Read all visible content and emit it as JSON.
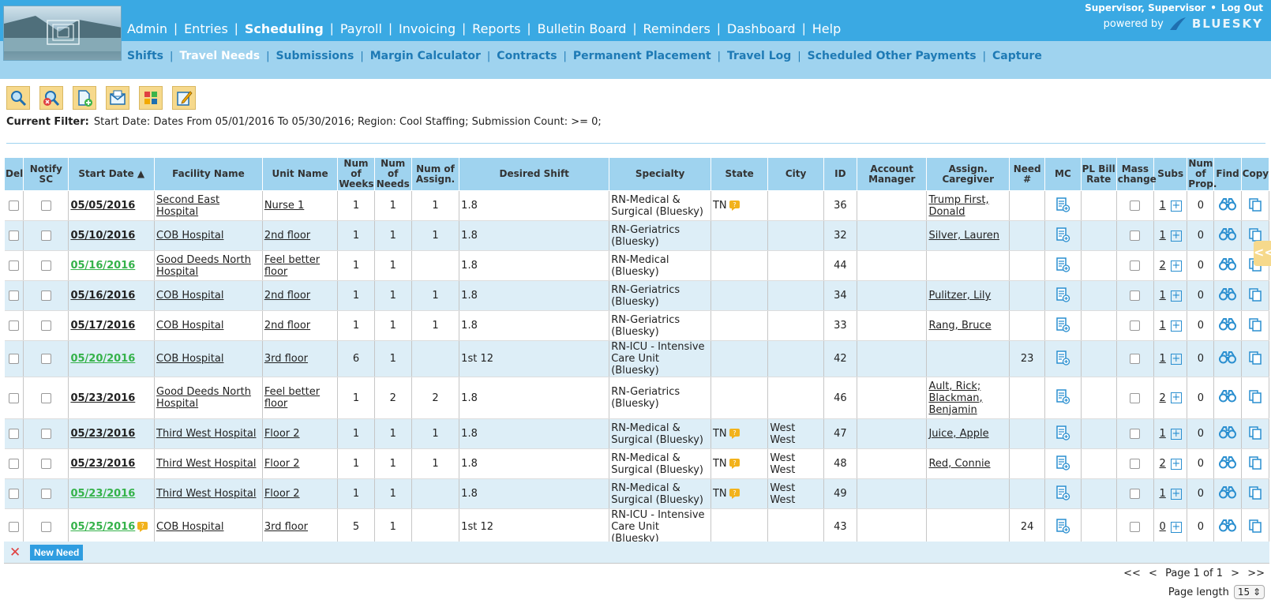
{
  "header": {
    "main_nav": [
      {
        "label": "Admin",
        "active": false
      },
      {
        "label": "Entries",
        "active": false
      },
      {
        "label": "Scheduling",
        "active": true
      },
      {
        "label": "Payroll",
        "active": false
      },
      {
        "label": "Invoicing",
        "active": false
      },
      {
        "label": "Reports",
        "active": false
      },
      {
        "label": "Bulletin Board",
        "active": false
      },
      {
        "label": "Reminders",
        "active": false
      },
      {
        "label": "Dashboard",
        "active": false
      },
      {
        "label": "Help",
        "active": false
      }
    ],
    "sub_nav": [
      {
        "label": "Shifts",
        "active": false
      },
      {
        "label": "Travel Needs",
        "active": true
      },
      {
        "label": "Submissions",
        "active": false
      },
      {
        "label": "Margin Calculator",
        "active": false
      },
      {
        "label": "Contracts",
        "active": false
      },
      {
        "label": "Permanent Placement",
        "active": false
      },
      {
        "label": "Travel Log",
        "active": false
      },
      {
        "label": "Scheduled Other Payments",
        "active": false
      },
      {
        "label": "Capture",
        "active": false
      }
    ],
    "user": "Supervisor, Supervisor",
    "dot": "•",
    "logout": "Log Out",
    "powered_by": "powered by",
    "brand": "BLUESKY"
  },
  "toolbar": [
    {
      "icon": "search-icon"
    },
    {
      "icon": "clear-search-icon"
    },
    {
      "icon": "add-document-icon"
    },
    {
      "icon": "mail-icon"
    },
    {
      "icon": "grid-colors-icon"
    },
    {
      "icon": "edit-note-icon"
    }
  ],
  "filter": {
    "label": "Current Filter:",
    "text": "Start Date: Dates From 05/01/2016 To 05/30/2016; Region: Cool Staffing; Submission Count: >= 0;"
  },
  "table": {
    "headers": {
      "del": "Del",
      "notify": "Notify SC",
      "start": "Start Date ▲",
      "facility": "Facility Name",
      "unit": "Unit Name",
      "weeks": "Num of Weeks",
      "needs": "Num of Needs",
      "assign": "Num of Assign.",
      "shift": "Desired Shift",
      "specialty": "Specialty",
      "state": "State",
      "city": "City",
      "id": "ID",
      "manager": "Account Manager",
      "caregiver": "Assign. Caregiver",
      "need_no": "Need #",
      "mc": "MC",
      "pl": "PL Bill Rate",
      "mass": "Mass change",
      "subs": "Subs",
      "prop": "Num of Prop.",
      "find": "Find",
      "copy": "Copy"
    },
    "rows": [
      {
        "date": "05/05/2016",
        "green": false,
        "flag": false,
        "facility": "Second East Hospital",
        "unit": "Nurse 1",
        "weeks": "1",
        "needs": "1",
        "assign": "1",
        "shift": "1.8",
        "specialty": "RN-Medical & Surgical (Bluesky)",
        "state": "TN",
        "state_flag": true,
        "city": "",
        "id": "36",
        "manager": "",
        "caregiver": "Trump First, Donald",
        "need_no": "",
        "subs": "1",
        "prop": "0"
      },
      {
        "date": "05/10/2016",
        "green": false,
        "flag": false,
        "facility": "COB Hospital",
        "unit": "2nd floor",
        "weeks": "1",
        "needs": "1",
        "assign": "1",
        "shift": "1.8",
        "specialty": "RN-Geriatrics (Bluesky)",
        "state": "",
        "state_flag": false,
        "city": "",
        "id": "32",
        "manager": "",
        "caregiver": "Silver, Lauren",
        "need_no": "",
        "subs": "1",
        "prop": "0"
      },
      {
        "date": "05/16/2016",
        "green": true,
        "flag": false,
        "facility": "Good Deeds North Hospital",
        "unit": "Feel better floor",
        "weeks": "1",
        "needs": "1",
        "assign": "",
        "shift": "1.8",
        "specialty": "RN-Medical (Bluesky)",
        "state": "",
        "state_flag": false,
        "city": "",
        "id": "44",
        "manager": "",
        "caregiver": "",
        "need_no": "",
        "subs": "2",
        "prop": "0"
      },
      {
        "date": "05/16/2016",
        "green": false,
        "flag": false,
        "facility": "COB Hospital",
        "unit": "2nd floor",
        "weeks": "1",
        "needs": "1",
        "assign": "1",
        "shift": "1.8",
        "specialty": "RN-Geriatrics (Bluesky)",
        "state": "",
        "state_flag": false,
        "city": "",
        "id": "34",
        "manager": "",
        "caregiver": "Pulitzer, Lily",
        "need_no": "",
        "subs": "1",
        "prop": "0"
      },
      {
        "date": "05/17/2016",
        "green": false,
        "flag": false,
        "facility": "COB Hospital",
        "unit": "2nd floor",
        "weeks": "1",
        "needs": "1",
        "assign": "1",
        "shift": "1.8",
        "specialty": "RN-Geriatrics (Bluesky)",
        "state": "",
        "state_flag": false,
        "city": "",
        "id": "33",
        "manager": "",
        "caregiver": "Rang, Bruce",
        "need_no": "",
        "subs": "1",
        "prop": "0"
      },
      {
        "date": "05/20/2016",
        "green": true,
        "flag": false,
        "facility": "COB Hospital",
        "unit": "3rd floor",
        "weeks": "6",
        "needs": "1",
        "assign": "",
        "shift": "1st 12",
        "specialty": "RN-ICU - Intensive Care Unit (Bluesky)",
        "state": "",
        "state_flag": false,
        "city": "",
        "id": "42",
        "manager": "",
        "caregiver": "",
        "need_no": "23",
        "subs": "1",
        "prop": "0"
      },
      {
        "date": "05/23/2016",
        "green": false,
        "flag": false,
        "facility": "Good Deeds North Hospital",
        "unit": "Feel better floor",
        "weeks": "1",
        "needs": "2",
        "assign": "2",
        "shift": "1.8",
        "specialty": "RN-Geriatrics (Bluesky)",
        "state": "",
        "state_flag": false,
        "city": "",
        "id": "46",
        "manager": "",
        "caregiver": "Ault, Rick; Blackman, Benjamin",
        "need_no": "",
        "subs": "2",
        "prop": "0"
      },
      {
        "date": "05/23/2016",
        "green": false,
        "flag": false,
        "facility": "Third West Hospital",
        "unit": "Floor 2",
        "weeks": "1",
        "needs": "1",
        "assign": "1",
        "shift": "1.8",
        "specialty": "RN-Medical & Surgical (Bluesky)",
        "state": "TN",
        "state_flag": true,
        "city": "West West",
        "id": "47",
        "manager": "",
        "caregiver": "Juice, Apple",
        "need_no": "",
        "subs": "1",
        "prop": "0"
      },
      {
        "date": "05/23/2016",
        "green": false,
        "flag": false,
        "facility": "Third West Hospital",
        "unit": "Floor 2",
        "weeks": "1",
        "needs": "1",
        "assign": "1",
        "shift": "1.8",
        "specialty": "RN-Medical & Surgical (Bluesky)",
        "state": "TN",
        "state_flag": true,
        "city": "West West",
        "id": "48",
        "manager": "",
        "caregiver": "Red, Connie",
        "need_no": "",
        "subs": "2",
        "prop": "0"
      },
      {
        "date": "05/23/2016",
        "green": true,
        "flag": false,
        "facility": "Third West Hospital",
        "unit": "Floor 2",
        "weeks": "1",
        "needs": "1",
        "assign": "",
        "shift": "1.8",
        "specialty": "RN-Medical & Surgical (Bluesky)",
        "state": "TN",
        "state_flag": true,
        "city": "West West",
        "id": "49",
        "manager": "",
        "caregiver": "",
        "need_no": "",
        "subs": "1",
        "prop": "0"
      },
      {
        "date": "05/25/2016",
        "green": true,
        "flag": true,
        "facility": "COB Hospital",
        "unit": "3rd floor",
        "weeks": "5",
        "needs": "1",
        "assign": "",
        "shift": "1st 12",
        "specialty": "RN-ICU - Intensive Care Unit (Bluesky)",
        "state": "",
        "state_flag": false,
        "city": "",
        "id": "43",
        "manager": "",
        "caregiver": "",
        "need_no": "24",
        "subs": "0",
        "prop": "0"
      }
    ]
  },
  "footer": {
    "delete_symbol": "✕",
    "new_need": "New Need",
    "pager": {
      "first": "<<",
      "prev": "<",
      "page": "Page 1 of 1",
      "next": ">",
      "last": ">>"
    },
    "page_length_label": "Page length",
    "page_length_value": "15 ⇕"
  },
  "side_tab": "<<"
}
